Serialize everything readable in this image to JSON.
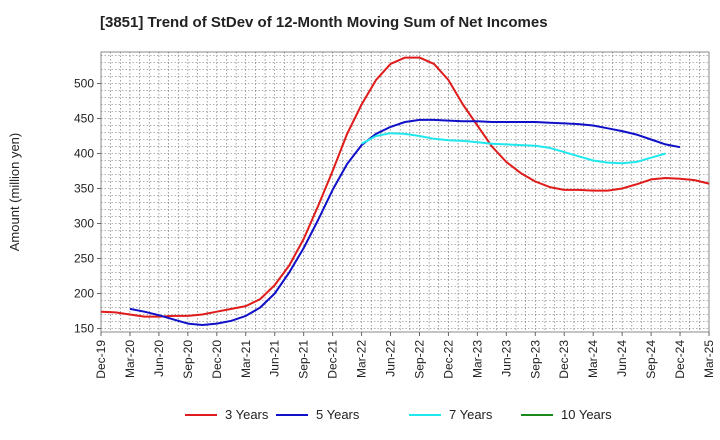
{
  "chart_data": {
    "type": "line",
    "title": "[3851]  Trend of StDev of 12-Month Moving Sum of Net Incomes",
    "ylabel": "Amount (million yen)",
    "xlabel": "",
    "ylim": [
      145,
      545
    ],
    "yticks": [
      150,
      200,
      250,
      300,
      350,
      400,
      450,
      500
    ],
    "grid": true,
    "legend_position": "bottom",
    "x_tick_labels": [
      "Dec-19",
      "Mar-20",
      "Jun-20",
      "Sep-20",
      "Dec-20",
      "Mar-21",
      "Jun-21",
      "Sep-21",
      "Dec-21",
      "Mar-22",
      "Jun-22",
      "Sep-22",
      "Dec-22",
      "Mar-23",
      "Jun-23",
      "Sep-23",
      "Dec-23",
      "Mar-24",
      "Jun-24",
      "Sep-24",
      "Dec-24",
      "Mar-25"
    ],
    "series": [
      {
        "name": "3 Years",
        "color": "#e01b1b",
        "values": [
          174,
          173,
          170,
          167,
          167,
          168,
          168,
          170,
          174,
          178,
          182,
          192,
          212,
          240,
          278,
          325,
          375,
          428,
          470,
          505,
          528,
          537,
          537,
          528,
          505,
          470,
          440,
          410,
          388,
          372,
          360,
          352,
          348,
          348,
          347,
          347,
          350,
          356,
          363,
          365,
          364,
          362,
          357,
          348,
          336
        ]
      },
      {
        "name": "5 Years",
        "color": "#1010c8",
        "values": [
          null,
          null,
          null,
          null,
          null,
          null,
          null,
          null,
          null,
          null,
          null,
          null,
          null,
          null,
          null,
          null,
          null,
          null,
          null,
          null,
          null,
          null,
          null,
          null,
          null,
          null,
          null,
          null,
          null,
          null,
          null,
          null,
          null,
          null,
          null,
          null,
          null,
          null,
          null,
          null,
          null,
          null,
          null,
          null,
          null
        ],
        "values_from_mar20": [
          178,
          174,
          169,
          163,
          157,
          155,
          157,
          161,
          168,
          180,
          200,
          230,
          265,
          305,
          348,
          385,
          412,
          428,
          438,
          445,
          448,
          448,
          447,
          446,
          446,
          445,
          445,
          445,
          445,
          444,
          443,
          442,
          440,
          436,
          432,
          427,
          420,
          413,
          409
        ]
      },
      {
        "name": "7 Years",
        "color": "#1ee8ee",
        "values_from_mar22": [
          414,
          425,
          429,
          428,
          425,
          421,
          419,
          418,
          416,
          414,
          413,
          412,
          411,
          408,
          402,
          396,
          390,
          387,
          386,
          388,
          394,
          400
        ]
      },
      {
        "name": "10 Years",
        "color": "#1a8a1a",
        "values": []
      }
    ]
  }
}
